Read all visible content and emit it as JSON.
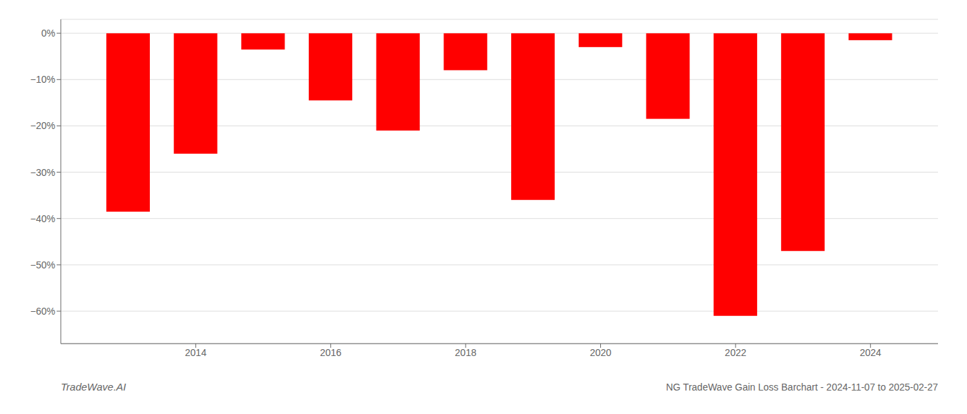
{
  "chart_data": {
    "type": "bar",
    "title": "NG TradeWave Gain Loss Barchart - 2024-11-07 to 2025-02-27",
    "annotations": [
      "TradeWave.AI"
    ],
    "x": [
      2013,
      2014,
      2015,
      2016,
      2017,
      2018,
      2019,
      2020,
      2021,
      2022,
      2023,
      2024
    ],
    "values": [
      -38.5,
      -26.0,
      -3.5,
      -14.5,
      -21.0,
      -8.0,
      -36.0,
      -3.0,
      -18.5,
      -61.0,
      -47.0,
      -1.5
    ],
    "color": "#ff0000",
    "xlim": [
      2012,
      2025
    ],
    "xticks": [
      2014,
      2016,
      2018,
      2020,
      2022,
      2024
    ],
    "ylim": [
      -67,
      3
    ],
    "yticks": [
      {
        "value": 0,
        "label": "0%"
      },
      {
        "value": -10,
        "label": "−10%"
      },
      {
        "value": -20,
        "label": "−20%"
      },
      {
        "value": -30,
        "label": "−30%"
      },
      {
        "value": -40,
        "label": "−40%"
      },
      {
        "value": -50,
        "label": "−50%"
      },
      {
        "value": -60,
        "label": "−60%"
      }
    ],
    "grid": true
  }
}
